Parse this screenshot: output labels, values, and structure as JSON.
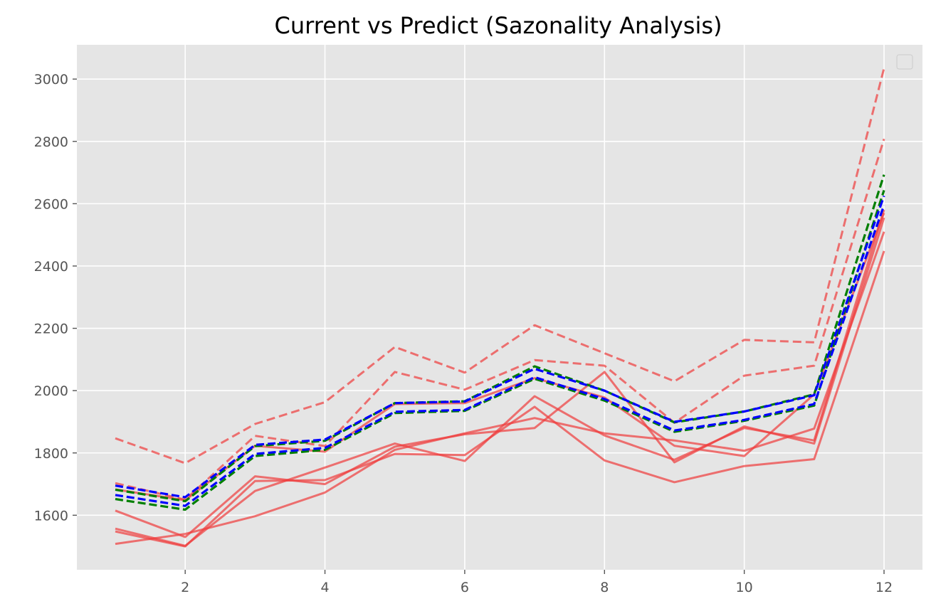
{
  "chart_data": {
    "type": "line",
    "title": "Current vs Predict (Sazonality Analysis)",
    "xlabel": "",
    "ylabel": "",
    "x": [
      1,
      2,
      3,
      4,
      5,
      6,
      7,
      8,
      9,
      10,
      11,
      12
    ],
    "xlim": [
      0.45,
      12.55
    ],
    "ylim": [
      1425,
      3110
    ],
    "xticks": [
      2,
      4,
      6,
      8,
      10,
      12
    ],
    "yticks": [
      1600,
      1800,
      2000,
      2200,
      2400,
      2600,
      2800,
      3000
    ],
    "grid": true,
    "legend": {
      "position": "top-right",
      "entries": []
    },
    "colors": {
      "background": "#e5e5e5",
      "grid": "#ffffff",
      "current": "#f03c3c",
      "predict": "#f03c3c",
      "band_a": "#0000ff",
      "band_b": "#007f00"
    },
    "series": [
      {
        "group": "current",
        "style": "solid",
        "values": [
          1615,
          1530,
          1725,
          1700,
          1820,
          1860,
          1880,
          2060,
          1770,
          1885,
          1830,
          2555
        ]
      },
      {
        "group": "current",
        "style": "solid",
        "values": [
          1548,
          1500,
          1710,
          1713,
          1797,
          1793,
          1948,
          1776,
          1706,
          1758,
          1780,
          2448
        ]
      },
      {
        "group": "current",
        "style": "solid",
        "values": [
          1557,
          1502,
          1678,
          1753,
          1830,
          1774,
          1982,
          1856,
          1778,
          1880,
          1840,
          2580
        ]
      },
      {
        "group": "current",
        "style": "solid",
        "values": [
          1508,
          1540,
          1597,
          1673,
          1810,
          1863,
          1912,
          1863,
          1840,
          1807,
          1878,
          2510
        ]
      },
      {
        "group": "current",
        "style": "solid",
        "values": [
          1683,
          1648,
          1823,
          1804,
          1957,
          1960,
          2040,
          1978,
          1823,
          1790,
          1988,
          2570
        ]
      },
      {
        "group": "predict",
        "style": "dashed",
        "values": [
          1847,
          1767,
          1893,
          1963,
          2140,
          2058,
          2210,
          2120,
          2030,
          2163,
          2155,
          3035
        ]
      },
      {
        "group": "predict",
        "style": "dashed",
        "values": [
          1703,
          1650,
          1855,
          1822,
          2060,
          2003,
          2098,
          2080,
          1897,
          2048,
          2080,
          2808
        ]
      },
      {
        "group": "band_a",
        "style": "dashed",
        "values": [
          1695,
          1658,
          1826,
          1843,
          1960,
          1965,
          2070,
          2000,
          1900,
          1933,
          1985,
          2625
        ]
      },
      {
        "group": "band_a",
        "style": "dashed",
        "values": [
          1665,
          1630,
          1797,
          1816,
          1932,
          1938,
          2043,
          1973,
          1872,
          1906,
          1957,
          2595
        ]
      },
      {
        "group": "band_b",
        "style": "dashed",
        "values": [
          1682,
          1645,
          1822,
          1839,
          1960,
          1966,
          2078,
          2000,
          1898,
          1933,
          1988,
          2693
        ]
      },
      {
        "group": "band_b",
        "style": "dashed",
        "values": [
          1652,
          1618,
          1790,
          1810,
          1928,
          1935,
          2038,
          1968,
          1868,
          1903,
          1952,
          2643
        ]
      }
    ]
  }
}
